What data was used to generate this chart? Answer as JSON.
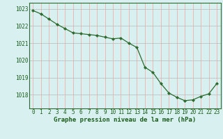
{
  "x": [
    0,
    1,
    2,
    3,
    4,
    5,
    6,
    7,
    8,
    9,
    10,
    11,
    12,
    13,
    14,
    15,
    16,
    17,
    18,
    19,
    20,
    21,
    22,
    23
  ],
  "y": [
    1022.9,
    1022.7,
    1022.4,
    1022.1,
    1021.85,
    1021.6,
    1021.55,
    1021.5,
    1021.45,
    1021.35,
    1021.25,
    1021.3,
    1021.0,
    1020.75,
    1019.6,
    1019.3,
    1018.65,
    1018.1,
    1017.85,
    1017.65,
    1017.7,
    1017.9,
    1018.05,
    1018.65
  ],
  "line_color": "#2d6a2d",
  "marker_color": "#2d6a2d",
  "bg_color": "#d8f0f0",
  "pink_grid_color": "#f5a0a0",
  "gray_grid_color": "#b8b8b8",
  "xlabel": "Graphe pression niveau de la mer (hPa)",
  "xlabel_color": "#1a5c1a",
  "xlabel_fontsize": 6.5,
  "tick_color": "#1a5c1a",
  "tick_fontsize": 5.5,
  "ylim_min": 1017.2,
  "ylim_max": 1023.35,
  "yticks": [
    1018,
    1019,
    1020,
    1021,
    1022,
    1023
  ],
  "xticks": [
    0,
    1,
    2,
    3,
    4,
    5,
    6,
    7,
    8,
    9,
    10,
    11,
    12,
    13,
    14,
    15,
    16,
    17,
    18,
    19,
    20,
    21,
    22,
    23
  ]
}
